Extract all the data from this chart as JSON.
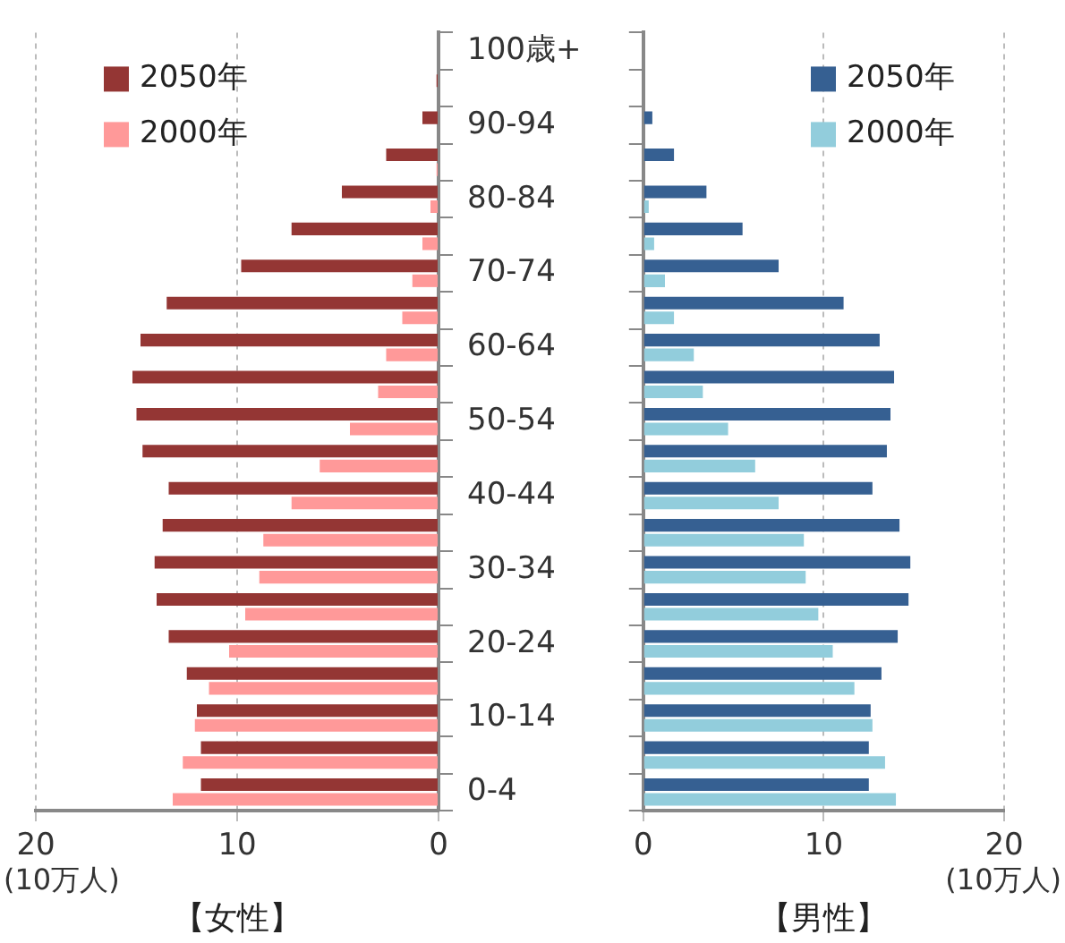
{
  "chart_data": [
    {
      "type": "bar",
      "orientation": "horizontal",
      "xlabel": "【女性】",
      "annotations": [
        "(10万人)"
      ],
      "categories": [
        "100歳+",
        null,
        "90-94",
        null,
        "80-84",
        null,
        "70-74",
        null,
        "60-64",
        null,
        "50-54",
        null,
        "40-44",
        null,
        "30-34",
        null,
        "20-24",
        null,
        "10-14",
        null,
        "0-4"
      ],
      "series": [
        {
          "name": "2050年",
          "color": "#943634",
          "values": [
            0,
            0.1,
            0.8,
            2.6,
            4.8,
            7.3,
            9.8,
            13.5,
            14.8,
            15.2,
            15.0,
            14.7,
            13.4,
            13.7,
            14.1,
            14.0,
            13.4,
            12.5,
            12.0,
            11.8,
            11.8
          ]
        },
        {
          "name": "2000年",
          "color": "#ff9999",
          "values": [
            0,
            0,
            0,
            0.1,
            0.4,
            0.8,
            1.3,
            1.8,
            2.6,
            3.0,
            4.4,
            5.9,
            7.3,
            8.7,
            8.9,
            9.6,
            10.4,
            11.4,
            12.1,
            12.7,
            13.2
          ]
        }
      ],
      "xlim": [
        20,
        0
      ],
      "xticks": [
        20,
        10,
        0
      ],
      "grid": "x",
      "legend": "top left"
    },
    {
      "type": "bar",
      "orientation": "horizontal",
      "xlabel": "【男性】",
      "annotations": [
        "(10万人)"
      ],
      "categories": [
        null,
        null,
        null,
        null,
        null,
        null,
        null,
        null,
        null,
        null,
        null,
        null,
        null,
        null,
        null,
        null,
        null,
        null,
        null,
        null,
        null
      ],
      "series": [
        {
          "name": "2050年",
          "color": "#366092",
          "values": [
            0,
            0,
            0.5,
            1.7,
            3.5,
            5.5,
            7.5,
            11.1,
            13.1,
            13.9,
            13.7,
            13.5,
            12.7,
            14.2,
            14.8,
            14.7,
            14.1,
            13.2,
            12.6,
            12.5,
            12.5
          ]
        },
        {
          "name": "2000年",
          "color": "#92cddc",
          "values": [
            0,
            0,
            0,
            0,
            0.3,
            0.6,
            1.2,
            1.7,
            2.8,
            3.3,
            4.7,
            6.2,
            7.5,
            8.9,
            9.0,
            9.7,
            10.5,
            11.7,
            12.7,
            13.4,
            14.0
          ]
        }
      ],
      "xlim": [
        0,
        20
      ],
      "xticks": [
        0,
        10,
        20
      ],
      "grid": "x",
      "legend": "top right"
    }
  ]
}
